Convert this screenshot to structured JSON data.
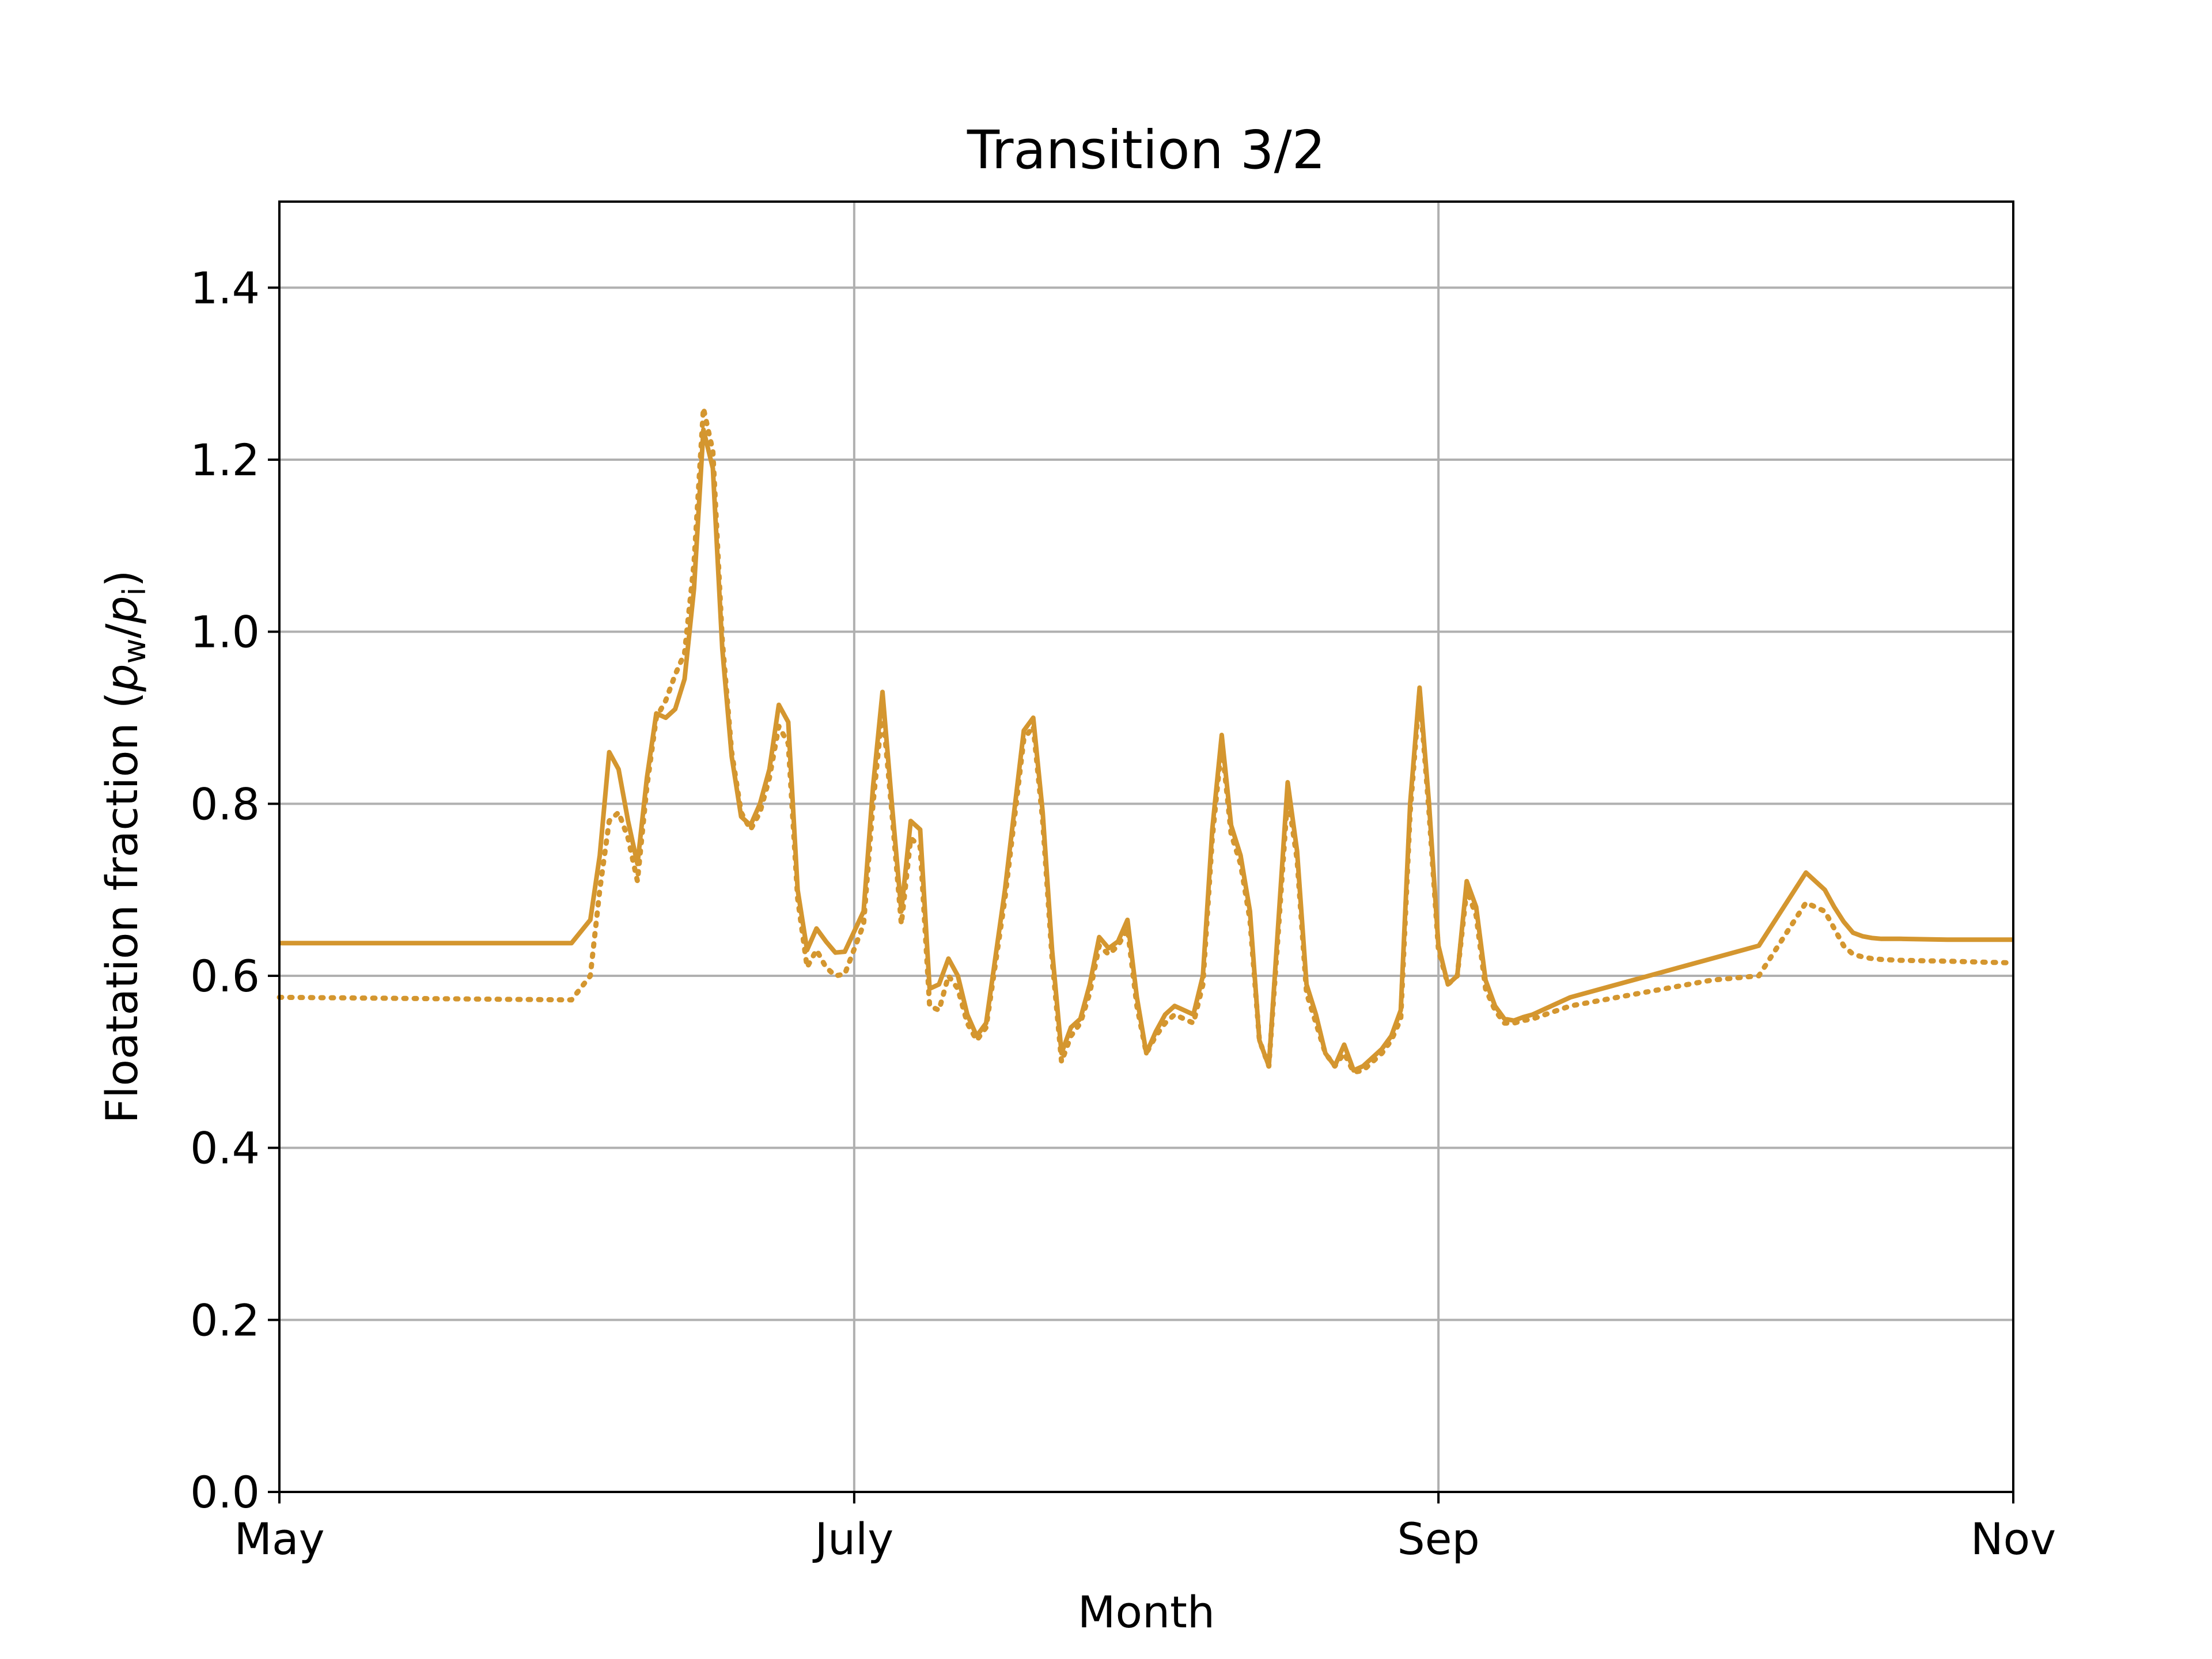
{
  "chart_data": {
    "type": "line",
    "title": "Transition 3/2",
    "xlabel": "Month",
    "ylabel_prefix": "Floatation fraction (",
    "ylabel_p": "p",
    "ylabel_sub_w": "w",
    "ylabel_slash": "/",
    "ylabel_sub_i": "i",
    "ylabel_suffix": ")",
    "xlim": [
      "2021-05-01",
      "2021-11-01"
    ],
    "ylim": [
      0,
      1.5
    ],
    "x_ticks": [
      {
        "date": "2021-05-01",
        "label": "May"
      },
      {
        "date": "2021-07-01",
        "label": "July"
      },
      {
        "date": "2021-09-01",
        "label": "Sep"
      },
      {
        "date": "2021-11-01",
        "label": "Nov"
      }
    ],
    "y_ticks": [
      0.0,
      0.2,
      0.4,
      0.6,
      0.8,
      1.0,
      1.2,
      1.4
    ],
    "y_tick_labels": [
      "0.0",
      "0.2",
      "0.4",
      "0.6",
      "0.8",
      "1.0",
      "1.2",
      "1.4"
    ],
    "grid": true,
    "color": "#d4962f",
    "series": [
      {
        "style": "solid",
        "x": [
          "2021-05-01",
          "2021-06-01",
          "2021-06-03",
          "2021-06-04",
          "2021-06-05",
          "2021-06-06",
          "2021-06-07",
          "2021-06-08",
          "2021-06-09",
          "2021-06-10",
          "2021-06-11",
          "2021-06-12",
          "2021-06-13",
          "2021-06-14",
          "2021-06-15",
          "2021-06-16",
          "2021-06-17",
          "2021-06-18",
          "2021-06-19",
          "2021-06-20",
          "2021-06-21",
          "2021-06-22",
          "2021-06-23",
          "2021-06-24",
          "2021-06-25",
          "2021-06-26",
          "2021-06-27",
          "2021-06-28",
          "2021-06-29",
          "2021-06-30",
          "2021-07-02",
          "2021-07-03",
          "2021-07-04",
          "2021-07-05",
          "2021-07-06",
          "2021-07-07",
          "2021-07-08",
          "2021-07-09",
          "2021-07-10",
          "2021-07-11",
          "2021-07-12",
          "2021-07-13",
          "2021-07-14",
          "2021-07-15",
          "2021-07-17",
          "2021-07-19",
          "2021-07-20",
          "2021-07-21",
          "2021-07-22",
          "2021-07-23",
          "2021-07-24",
          "2021-07-25",
          "2021-07-26",
          "2021-07-27",
          "2021-07-28",
          "2021-07-29",
          "2021-07-30",
          "2021-07-31",
          "2021-08-01",
          "2021-08-02",
          "2021-08-03",
          "2021-08-04",
          "2021-08-05",
          "2021-08-06",
          "2021-08-07",
          "2021-08-08",
          "2021-08-09",
          "2021-08-10",
          "2021-08-11",
          "2021-08-12",
          "2021-08-13",
          "2021-08-14",
          "2021-08-15",
          "2021-08-16",
          "2021-08-17",
          "2021-08-18",
          "2021-08-19",
          "2021-08-20",
          "2021-08-21",
          "2021-08-22",
          "2021-08-23",
          "2021-08-24",
          "2021-08-25",
          "2021-08-26",
          "2021-08-27",
          "2021-08-28",
          "2021-08-29",
          "2021-08-30",
          "2021-08-31",
          "2021-09-01",
          "2021-09-02",
          "2021-09-03",
          "2021-09-04",
          "2021-09-05",
          "2021-09-06",
          "2021-09-07",
          "2021-09-08",
          "2021-09-09",
          "2021-09-10",
          "2021-09-11",
          "2021-09-15",
          "2021-09-20",
          "2021-09-25",
          "2021-09-30",
          "2021-10-05",
          "2021-10-10",
          "2021-10-12",
          "2021-10-13",
          "2021-10-14",
          "2021-10-15",
          "2021-10-16",
          "2021-10-17",
          "2021-10-18",
          "2021-10-20",
          "2021-10-25",
          "2021-11-01"
        ],
        "y": [
          0.638,
          0.638,
          0.665,
          0.74,
          0.86,
          0.84,
          0.78,
          0.73,
          0.83,
          0.905,
          0.9,
          0.91,
          0.945,
          1.05,
          1.235,
          1.19,
          0.98,
          0.855,
          0.785,
          0.775,
          0.8,
          0.84,
          0.915,
          0.895,
          0.7,
          0.63,
          0.655,
          0.64,
          0.627,
          0.628,
          0.675,
          0.82,
          0.93,
          0.8,
          0.675,
          0.78,
          0.77,
          0.585,
          0.59,
          0.62,
          0.6,
          0.555,
          0.53,
          0.545,
          0.7,
          0.885,
          0.9,
          0.79,
          0.63,
          0.51,
          0.54,
          0.55,
          0.59,
          0.645,
          0.632,
          0.64,
          0.665,
          0.575,
          0.51,
          0.535,
          0.555,
          0.565,
          0.56,
          0.555,
          0.6,
          0.77,
          0.88,
          0.775,
          0.74,
          0.675,
          0.525,
          0.495,
          0.66,
          0.825,
          0.745,
          0.59,
          0.555,
          0.51,
          0.495,
          0.52,
          0.49,
          0.495,
          0.505,
          0.515,
          0.53,
          0.56,
          0.8,
          0.935,
          0.8,
          0.635,
          0.59,
          0.6,
          0.71,
          0.68,
          0.595,
          0.565,
          0.55,
          0.548,
          0.552,
          0.555,
          0.575,
          0.59,
          0.605,
          0.62,
          0.635,
          0.72,
          0.7,
          0.68,
          0.663,
          0.65,
          0.646,
          0.644,
          0.643,
          0.643,
          0.642,
          0.642
        ]
      },
      {
        "style": "dotted",
        "x": [
          "2021-05-01",
          "2021-06-01",
          "2021-06-03",
          "2021-06-04",
          "2021-06-05",
          "2021-06-06",
          "2021-06-07",
          "2021-06-08",
          "2021-06-09",
          "2021-06-10",
          "2021-06-11",
          "2021-06-12",
          "2021-06-13",
          "2021-06-14",
          "2021-06-15",
          "2021-06-16",
          "2021-06-17",
          "2021-06-18",
          "2021-06-19",
          "2021-06-20",
          "2021-06-21",
          "2021-06-22",
          "2021-06-23",
          "2021-06-24",
          "2021-06-25",
          "2021-06-26",
          "2021-06-27",
          "2021-06-28",
          "2021-06-29",
          "2021-06-30",
          "2021-07-02",
          "2021-07-03",
          "2021-07-04",
          "2021-07-05",
          "2021-07-06",
          "2021-07-07",
          "2021-07-08",
          "2021-07-09",
          "2021-07-10",
          "2021-07-11",
          "2021-07-12",
          "2021-07-13",
          "2021-07-14",
          "2021-07-15",
          "2021-07-17",
          "2021-07-19",
          "2021-07-20",
          "2021-07-21",
          "2021-07-22",
          "2021-07-23",
          "2021-07-24",
          "2021-07-25",
          "2021-07-26",
          "2021-07-27",
          "2021-07-28",
          "2021-07-29",
          "2021-07-30",
          "2021-07-31",
          "2021-08-01",
          "2021-08-02",
          "2021-08-03",
          "2021-08-04",
          "2021-08-05",
          "2021-08-06",
          "2021-08-07",
          "2021-08-08",
          "2021-08-09",
          "2021-08-10",
          "2021-08-11",
          "2021-08-12",
          "2021-08-13",
          "2021-08-14",
          "2021-08-15",
          "2021-08-16",
          "2021-08-17",
          "2021-08-18",
          "2021-08-19",
          "2021-08-20",
          "2021-08-21",
          "2021-08-22",
          "2021-08-23",
          "2021-08-24",
          "2021-08-25",
          "2021-08-26",
          "2021-08-27",
          "2021-08-28",
          "2021-08-29",
          "2021-08-30",
          "2021-08-31",
          "2021-09-01",
          "2021-09-02",
          "2021-09-03",
          "2021-09-04",
          "2021-09-05",
          "2021-09-06",
          "2021-09-07",
          "2021-09-08",
          "2021-09-09",
          "2021-09-10",
          "2021-09-11",
          "2021-09-15",
          "2021-09-20",
          "2021-09-25",
          "2021-09-30",
          "2021-10-05",
          "2021-10-10",
          "2021-10-12",
          "2021-10-13",
          "2021-10-14",
          "2021-10-15",
          "2021-10-16",
          "2021-10-17",
          "2021-10-18",
          "2021-10-20",
          "2021-10-25",
          "2021-11-01"
        ],
        "y": [
          0.575,
          0.572,
          0.6,
          0.7,
          0.78,
          0.79,
          0.76,
          0.71,
          0.82,
          0.9,
          0.92,
          0.95,
          0.975,
          1.08,
          1.26,
          1.21,
          0.99,
          0.86,
          0.79,
          0.77,
          0.79,
          0.83,
          0.89,
          0.87,
          0.69,
          0.61,
          0.63,
          0.61,
          0.6,
          0.602,
          0.66,
          0.8,
          0.91,
          0.79,
          0.66,
          0.76,
          0.75,
          0.565,
          0.56,
          0.6,
          0.585,
          0.545,
          0.525,
          0.54,
          0.69,
          0.875,
          0.89,
          0.78,
          0.62,
          0.5,
          0.53,
          0.545,
          0.58,
          0.635,
          0.625,
          0.635,
          0.655,
          0.565,
          0.51,
          0.53,
          0.545,
          0.555,
          0.55,
          0.545,
          0.59,
          0.76,
          0.87,
          0.765,
          0.73,
          0.665,
          0.525,
          0.495,
          0.65,
          0.81,
          0.735,
          0.58,
          0.545,
          0.51,
          0.495,
          0.51,
          0.488,
          0.49,
          0.5,
          0.51,
          0.525,
          0.55,
          0.79,
          0.93,
          0.79,
          0.63,
          0.59,
          0.6,
          0.7,
          0.67,
          0.585,
          0.56,
          0.545,
          0.545,
          0.548,
          0.55,
          0.565,
          0.575,
          0.585,
          0.595,
          0.6,
          0.685,
          0.675,
          0.655,
          0.635,
          0.625,
          0.622,
          0.62,
          0.619,
          0.618,
          0.617,
          0.615
        ]
      }
    ]
  }
}
